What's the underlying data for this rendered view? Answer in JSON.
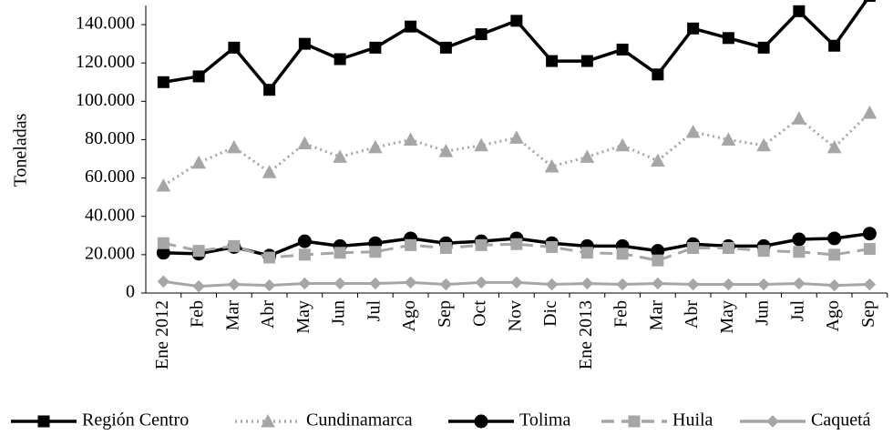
{
  "chart_data": {
    "type": "line",
    "y_label": "Toneladas",
    "categories": [
      "Ene 2012",
      "Feb",
      "Mar",
      "Abr",
      "May",
      "Jun",
      "Jul",
      "Ago",
      "Sep",
      "Oct",
      "Nov",
      "Dic",
      "Ene 2013",
      "Feb",
      "Mar",
      "Abr",
      "May",
      "Jun",
      "Jul",
      "Ago",
      "Sep"
    ],
    "ylim": [
      0,
      150000
    ],
    "yticks": [
      0,
      {
        "value": 20000,
        "label": "20.000"
      },
      {
        "value": 40000,
        "label": "40.000"
      },
      {
        "value": 60000,
        "label": "60.000"
      },
      {
        "value": 80000,
        "label": "80.000"
      },
      {
        "value": 100000,
        "label": "100.000"
      },
      {
        "value": 120000,
        "label": "120.000"
      },
      {
        "value": 140000,
        "label": "140.000"
      }
    ],
    "legend": "bottom",
    "series": [
      {
        "name": "Región Centro",
        "color": "#000000",
        "dash": "solid",
        "marker": "square",
        "values": [
          110000,
          113000,
          128000,
          106000,
          130000,
          122000,
          128000,
          139000,
          128000,
          135000,
          142000,
          121000,
          121000,
          127000,
          114000,
          138000,
          133000,
          128000,
          147000,
          129000,
          155000
        ]
      },
      {
        "name": "Cundinamarca",
        "color": "#a6a6a6",
        "dash": "dotted",
        "marker": "triangle",
        "values": [
          56000,
          68000,
          76000,
          63000,
          78000,
          71000,
          76000,
          80000,
          74000,
          77000,
          81000,
          66000,
          71000,
          77000,
          69000,
          84000,
          80000,
          77000,
          91000,
          76000,
          94000
        ]
      },
      {
        "name": "Tolima",
        "color": "#000000",
        "dash": "solid",
        "marker": "circle",
        "values": [
          21000,
          20500,
          24000,
          19500,
          27000,
          24500,
          26000,
          28500,
          26000,
          27000,
          28500,
          26000,
          24500,
          24500,
          22000,
          25500,
          24500,
          24500,
          28000,
          28500,
          31000
        ]
      },
      {
        "name": "Huila",
        "color": "#a6a6a6",
        "dash": "dashed",
        "marker": "square",
        "values": [
          26000,
          22000,
          24500,
          18500,
          20000,
          21000,
          21500,
          25000,
          23500,
          25000,
          25500,
          24000,
          21000,
          20500,
          17000,
          23500,
          23500,
          22000,
          21500,
          20000,
          23000
        ]
      },
      {
        "name": "Caquetá",
        "color": "#a6a6a6",
        "dash": "solid",
        "marker": "diamond",
        "values": [
          6000,
          3500,
          4500,
          4000,
          5000,
          5000,
          5000,
          5500,
          4500,
          5500,
          5500,
          4500,
          5000,
          4500,
          5000,
          4500,
          4500,
          4500,
          5000,
          4000,
          4500
        ]
      }
    ]
  }
}
